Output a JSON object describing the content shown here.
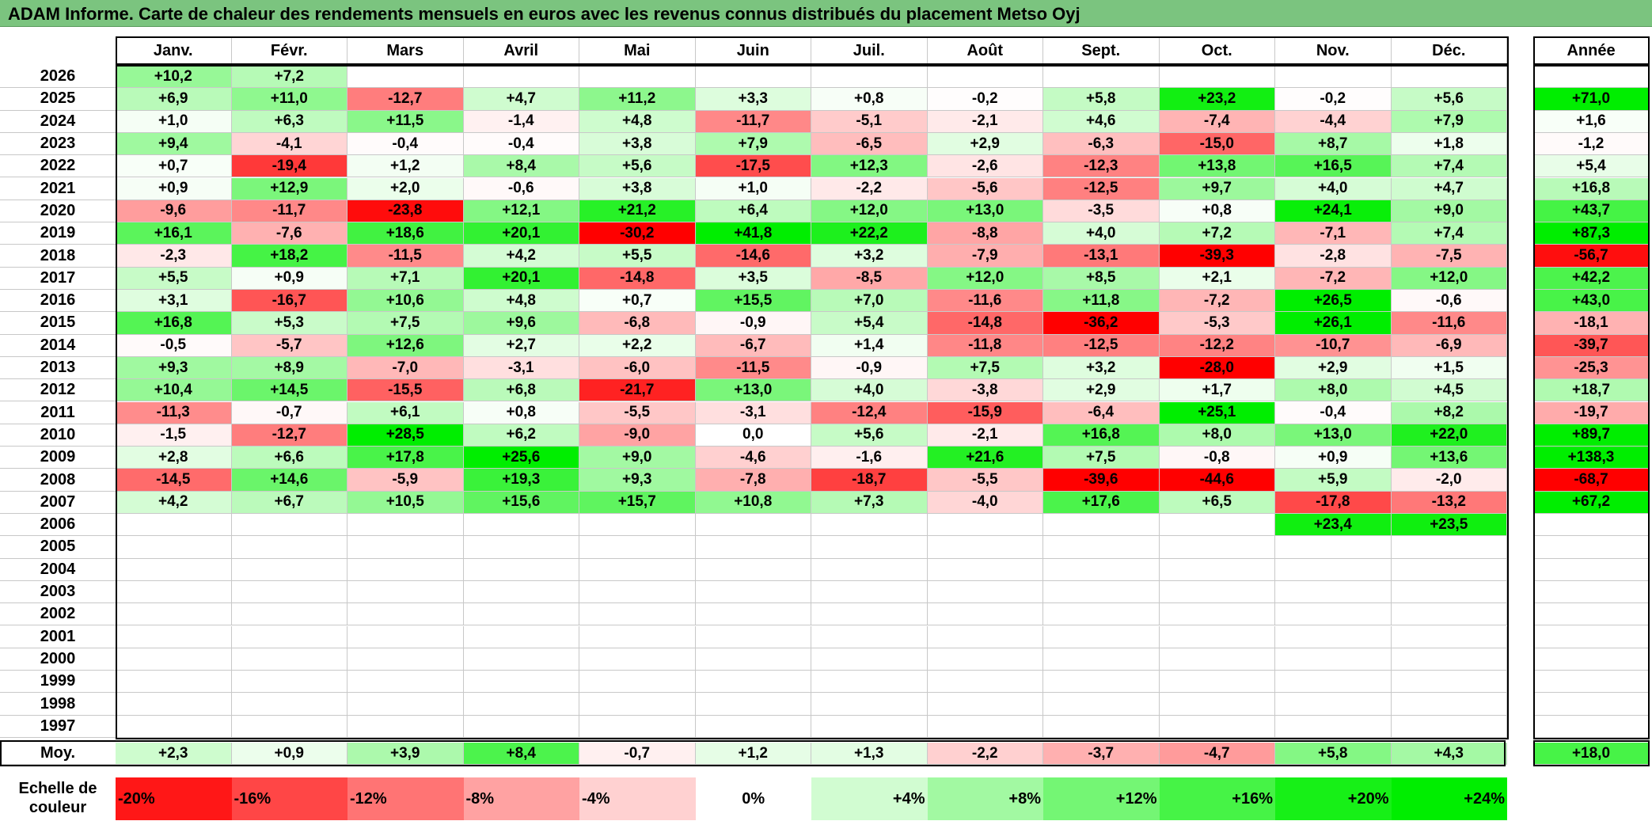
{
  "title": "ADAM Informe. Carte de chaleur des rendements mensuels en euros avec les revenus connus distribués du placement Metso Oyj",
  "chart_data": {
    "type": "heatmap",
    "months": [
      "Janv.",
      "Févr.",
      "Mars",
      "Avril",
      "Mai",
      "Juin",
      "Juil.",
      "Août",
      "Sept.",
      "Oct.",
      "Nov.",
      "Déc."
    ],
    "year_column_label": "Année",
    "rows": [
      {
        "year": "2026",
        "values": [
          "+10,2",
          "+7,2",
          "",
          "",
          "",
          "",
          "",
          "",
          "",
          "",
          "",
          ""
        ],
        "annual": ""
      },
      {
        "year": "2025",
        "values": [
          "+6,9",
          "+11,0",
          "-12,7",
          "+4,7",
          "+11,2",
          "+3,3",
          "+0,8",
          "-0,2",
          "+5,8",
          "+23,2",
          "-0,2",
          "+5,6"
        ],
        "annual": "+71,0"
      },
      {
        "year": "2024",
        "values": [
          "+1,0",
          "+6,3",
          "+11,5",
          "-1,4",
          "+4,8",
          "-11,7",
          "-5,1",
          "-2,1",
          "+4,6",
          "-7,4",
          "-4,4",
          "+7,9"
        ],
        "annual": "+1,6"
      },
      {
        "year": "2023",
        "values": [
          "+9,4",
          "-4,1",
          "-0,4",
          "-0,4",
          "+3,8",
          "+7,9",
          "-6,5",
          "+2,9",
          "-6,3",
          "-15,0",
          "+8,7",
          "+1,8"
        ],
        "annual": "-1,2"
      },
      {
        "year": "2022",
        "values": [
          "+0,7",
          "-19,4",
          "+1,2",
          "+8,4",
          "+5,6",
          "-17,5",
          "+12,3",
          "-2,6",
          "-12,3",
          "+13,8",
          "+16,5",
          "+7,4"
        ],
        "annual": "+5,4"
      },
      {
        "year": "2021",
        "values": [
          "+0,9",
          "+12,9",
          "+2,0",
          "-0,6",
          "+3,8",
          "+1,0",
          "-2,2",
          "-5,6",
          "-12,5",
          "+9,7",
          "+4,0",
          "+4,7"
        ],
        "annual": "+16,8"
      },
      {
        "year": "2020",
        "values": [
          "-9,6",
          "-11,7",
          "-23,8",
          "+12,1",
          "+21,2",
          "+6,4",
          "+12,0",
          "+13,0",
          "-3,5",
          "+0,8",
          "+24,1",
          "+9,0"
        ],
        "annual": "+43,7"
      },
      {
        "year": "2019",
        "values": [
          "+16,1",
          "-7,6",
          "+18,6",
          "+20,1",
          "-30,2",
          "+41,8",
          "+22,2",
          "-8,8",
          "+4,0",
          "+7,2",
          "-7,1",
          "+7,4"
        ],
        "annual": "+87,3"
      },
      {
        "year": "2018",
        "values": [
          "-2,3",
          "+18,2",
          "-11,5",
          "+4,2",
          "+5,5",
          "-14,6",
          "+3,2",
          "-7,9",
          "-13,1",
          "-39,3",
          "-2,8",
          "-7,5"
        ],
        "annual": "-56,7"
      },
      {
        "year": "2017",
        "values": [
          "+5,5",
          "+0,9",
          "+7,1",
          "+20,1",
          "-14,8",
          "+3,5",
          "-8,5",
          "+12,0",
          "+8,5",
          "+2,1",
          "-7,2",
          "+12,0"
        ],
        "annual": "+42,2"
      },
      {
        "year": "2016",
        "values": [
          "+3,1",
          "-16,7",
          "+10,6",
          "+4,8",
          "+0,7",
          "+15,5",
          "+7,0",
          "-11,6",
          "+11,8",
          "-7,2",
          "+26,5",
          "-0,6"
        ],
        "annual": "+43,0"
      },
      {
        "year": "2015",
        "values": [
          "+16,8",
          "+5,3",
          "+7,5",
          "+9,6",
          "-6,8",
          "-0,9",
          "+5,4",
          "-14,8",
          "-36,2",
          "-5,3",
          "+26,1",
          "-11,6"
        ],
        "annual": "-18,1"
      },
      {
        "year": "2014",
        "values": [
          "-0,5",
          "-5,7",
          "+12,6",
          "+2,7",
          "+2,2",
          "-6,7",
          "+1,4",
          "-11,8",
          "-12,5",
          "-12,2",
          "-10,7",
          "-6,9"
        ],
        "annual": "-39,7"
      },
      {
        "year": "2013",
        "values": [
          "+9,3",
          "+8,9",
          "-7,0",
          "-3,1",
          "-6,0",
          "-11,5",
          "-0,9",
          "+7,5",
          "+3,2",
          "-28,0",
          "+2,9",
          "+1,5"
        ],
        "annual": "-25,3"
      },
      {
        "year": "2012",
        "values": [
          "+10,4",
          "+14,5",
          "-15,5",
          "+6,8",
          "-21,7",
          "+13,0",
          "+4,0",
          "-3,8",
          "+2,9",
          "+1,7",
          "+8,0",
          "+4,5"
        ],
        "annual": "+18,7"
      },
      {
        "year": "2011",
        "values": [
          "-11,3",
          "-0,7",
          "+6,1",
          "+0,8",
          "-5,5",
          "-3,1",
          "-12,4",
          "-15,9",
          "-6,4",
          "+25,1",
          "-0,4",
          "+8,2"
        ],
        "annual": "-19,7"
      },
      {
        "year": "2010",
        "values": [
          "-1,5",
          "-12,7",
          "+28,5",
          "+6,2",
          "-9,0",
          "0,0",
          "+5,6",
          "-2,1",
          "+16,8",
          "+8,0",
          "+13,0",
          "+22,0"
        ],
        "annual": "+89,7"
      },
      {
        "year": "2009",
        "values": [
          "+2,8",
          "+6,6",
          "+17,8",
          "+25,6",
          "+9,0",
          "-4,6",
          "-1,6",
          "+21,6",
          "+7,5",
          "-0,8",
          "+0,9",
          "+13,6"
        ],
        "annual": "+138,3"
      },
      {
        "year": "2008",
        "values": [
          "-14,5",
          "+14,6",
          "-5,9",
          "+19,3",
          "+9,3",
          "-7,8",
          "-18,7",
          "-5,5",
          "-39,6",
          "-44,6",
          "+5,9",
          "-2,0"
        ],
        "annual": "-68,7"
      },
      {
        "year": "2007",
        "values": [
          "+4,2",
          "+6,7",
          "+10,5",
          "+15,6",
          "+15,7",
          "+10,8",
          "+7,3",
          "-4,0",
          "+17,6",
          "+6,5",
          "-17,8",
          "-13,2"
        ],
        "annual": "+67,2"
      },
      {
        "year": "2006",
        "values": [
          "",
          "",
          "",
          "",
          "",
          "",
          "",
          "",
          "",
          "",
          "+23,4",
          "+23,5"
        ],
        "annual": ""
      },
      {
        "year": "2005",
        "values": [
          "",
          "",
          "",
          "",
          "",
          "",
          "",
          "",
          "",
          "",
          "",
          ""
        ],
        "annual": ""
      },
      {
        "year": "2004",
        "values": [
          "",
          "",
          "",
          "",
          "",
          "",
          "",
          "",
          "",
          "",
          "",
          ""
        ],
        "annual": ""
      },
      {
        "year": "2003",
        "values": [
          "",
          "",
          "",
          "",
          "",
          "",
          "",
          "",
          "",
          "",
          "",
          ""
        ],
        "annual": ""
      },
      {
        "year": "2002",
        "values": [
          "",
          "",
          "",
          "",
          "",
          "",
          "",
          "",
          "",
          "",
          "",
          ""
        ],
        "annual": ""
      },
      {
        "year": "2001",
        "values": [
          "",
          "",
          "",
          "",
          "",
          "",
          "",
          "",
          "",
          "",
          "",
          ""
        ],
        "annual": ""
      },
      {
        "year": "2000",
        "values": [
          "",
          "",
          "",
          "",
          "",
          "",
          "",
          "",
          "",
          "",
          "",
          ""
        ],
        "annual": ""
      },
      {
        "year": "1999",
        "values": [
          "",
          "",
          "",
          "",
          "",
          "",
          "",
          "",
          "",
          "",
          "",
          ""
        ],
        "annual": ""
      },
      {
        "year": "1998",
        "values": [
          "",
          "",
          "",
          "",
          "",
          "",
          "",
          "",
          "",
          "",
          "",
          ""
        ],
        "annual": ""
      },
      {
        "year": "1997",
        "values": [
          "",
          "",
          "",
          "",
          "",
          "",
          "",
          "",
          "",
          "",
          "",
          ""
        ],
        "annual": ""
      }
    ],
    "average": {
      "label": "Moy.",
      "values": [
        "+2,3",
        "+0,9",
        "+3,9",
        "+8,4",
        "-0,7",
        "+1,2",
        "+1,3",
        "-2,2",
        "-3,7",
        "-4,7",
        "+5,8",
        "+4,3"
      ],
      "annual": "+18,0"
    },
    "scale": {
      "label_line1": "Echelle de",
      "label_line2": "couleur",
      "steps": [
        "-20%",
        "-16%",
        "-12%",
        "-8%",
        "-4%",
        "0%",
        "+4%",
        "+8%",
        "+12%",
        "+16%",
        "+20%",
        "+24%"
      ]
    },
    "colors": {
      "strong_negative": "#ff0000",
      "neutral": "#ffffff",
      "strong_positive": "#00ee00",
      "title_bar": "#7bc47f"
    }
  }
}
